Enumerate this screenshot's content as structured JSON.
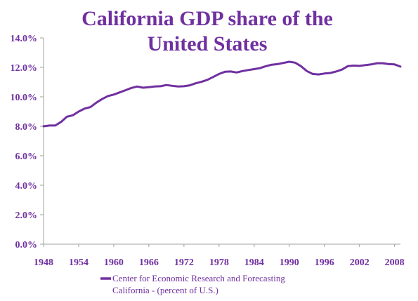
{
  "chart_data": {
    "type": "line",
    "title_lines": [
      "California GDP share of the",
      "United States"
    ],
    "xlabel": "",
    "ylabel": "",
    "ylim": [
      0,
      14
    ],
    "xlim": [
      1948,
      2009
    ],
    "y_ticks": [
      "0.0%",
      "2.0%",
      "4.0%",
      "6.0%",
      "8.0%",
      "10.0%",
      "12.0%",
      "14.0%"
    ],
    "x_ticks": [
      "1948",
      "1954",
      "1960",
      "1966",
      "1972",
      "1978",
      "1984",
      "1990",
      "1996",
      "2002",
      "2008"
    ],
    "grid": false,
    "legend_position": "bottom",
    "colors": {
      "series": "#7030a0",
      "axis": "#a0a0a0",
      "text": "#7030a0"
    },
    "series": [
      {
        "name_lines": [
          "Center for Economic Research and Forecasting",
          "California - (percent of U.S.)"
        ],
        "x": [
          1948,
          1949,
          1950,
          1951,
          1952,
          1953,
          1954,
          1955,
          1956,
          1957,
          1958,
          1959,
          1960,
          1961,
          1962,
          1963,
          1964,
          1965,
          1966,
          1967,
          1968,
          1969,
          1970,
          1971,
          1972,
          1973,
          1974,
          1975,
          1976,
          1977,
          1978,
          1979,
          1980,
          1981,
          1982,
          1983,
          1984,
          1985,
          1986,
          1987,
          1988,
          1989,
          1990,
          1991,
          1992,
          1993,
          1994,
          1995,
          1996,
          1997,
          1998,
          1999,
          2000,
          2001,
          2002,
          2003,
          2004,
          2005,
          2006,
          2007,
          2008,
          2009
        ],
        "values": [
          8.0,
          8.05,
          8.05,
          8.3,
          8.65,
          8.75,
          9.0,
          9.2,
          9.3,
          9.6,
          9.85,
          10.05,
          10.15,
          10.3,
          10.45,
          10.6,
          10.7,
          10.62,
          10.65,
          10.7,
          10.72,
          10.8,
          10.75,
          10.7,
          10.72,
          10.78,
          10.92,
          11.02,
          11.15,
          11.35,
          11.55,
          11.7,
          11.72,
          11.65,
          11.75,
          11.82,
          11.88,
          11.95,
          12.08,
          12.18,
          12.22,
          12.3,
          12.38,
          12.32,
          12.08,
          11.75,
          11.55,
          11.52,
          11.58,
          11.62,
          11.72,
          11.85,
          12.08,
          12.12,
          12.1,
          12.15,
          12.2,
          12.28,
          12.28,
          12.22,
          12.2,
          12.05
        ]
      }
    ]
  }
}
